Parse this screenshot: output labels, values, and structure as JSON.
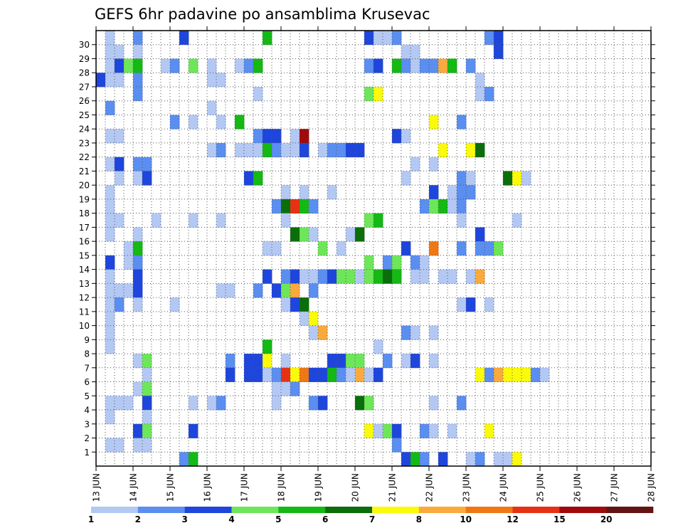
{
  "chart_data": {
    "type": "heatmap",
    "title": "GEFS 6hr padavine po ansamblima Krusevac",
    "xlabel": "",
    "ylabel": "",
    "x_tick_labels": [
      "13 JUN",
      "14 JUN",
      "15 JUN",
      "16 JUN",
      "17 JUN",
      "18 JUN",
      "19 JUN",
      "20 JUN",
      "21 JUN",
      "22 JUN",
      "23 JUN",
      "24 JUN",
      "25 JUN",
      "26 JUN",
      "27 JUN",
      "28 JUN"
    ],
    "y_tick_labels": [
      "1",
      "2",
      "3",
      "4",
      "5",
      "6",
      "7",
      "8",
      "9",
      "10",
      "11",
      "12",
      "13",
      "14",
      "15",
      "16",
      "17",
      "18",
      "19",
      "20",
      "21",
      "22",
      "23",
      "24",
      "25",
      "26",
      "27",
      "28",
      "29",
      "30"
    ],
    "xlim": [
      "13 JUN 00Z",
      "28 JUN 00Z"
    ],
    "time_step_hours": 6,
    "ylim": [
      0,
      30
    ],
    "grid": true,
    "legend_position": "bottom",
    "legend_thresholds": [
      "1",
      "2",
      "3",
      "4",
      "5",
      "6",
      "7",
      "8",
      "10",
      "12",
      "15",
      "20"
    ],
    "colors": [
      "#b4c8f4",
      "#5a8ef0",
      "#1e46dc",
      "#6ee65a",
      "#14b914",
      "#0a6e0a",
      "#fafa0a",
      "#faaa3c",
      "#f07814",
      "#e63214",
      "#a00a0a",
      "#641414"
    ],
    "cells": [
      [
        30,
        1,
        0
      ],
      [
        30,
        4,
        1
      ],
      [
        30,
        9,
        2
      ],
      [
        30,
        18,
        4
      ],
      [
        30,
        29,
        2
      ],
      [
        30,
        30,
        0
      ],
      [
        30,
        31,
        0
      ],
      [
        30,
        32,
        1
      ],
      [
        30,
        42,
        1
      ],
      [
        30,
        43,
        2
      ],
      [
        29,
        1,
        0
      ],
      [
        29,
        2,
        0
      ],
      [
        29,
        4,
        0
      ],
      [
        29,
        33,
        0
      ],
      [
        29,
        34,
        0
      ],
      [
        29,
        43,
        2
      ],
      [
        28,
        1,
        0
      ],
      [
        28,
        2,
        2
      ],
      [
        28,
        3,
        3
      ],
      [
        28,
        4,
        4
      ],
      [
        28,
        7,
        0
      ],
      [
        28,
        8,
        1
      ],
      [
        28,
        10,
        3
      ],
      [
        28,
        12,
        0
      ],
      [
        28,
        15,
        0
      ],
      [
        28,
        16,
        1
      ],
      [
        28,
        17,
        4
      ],
      [
        28,
        29,
        1
      ],
      [
        28,
        30,
        2
      ],
      [
        28,
        32,
        4
      ],
      [
        28,
        33,
        1
      ],
      [
        28,
        34,
        0
      ],
      [
        28,
        35,
        1
      ],
      [
        28,
        36,
        1
      ],
      [
        28,
        37,
        7
      ],
      [
        28,
        38,
        4
      ],
      [
        28,
        40,
        1
      ],
      [
        27,
        0,
        2
      ],
      [
        27,
        1,
        0
      ],
      [
        27,
        2,
        0
      ],
      [
        27,
        4,
        1
      ],
      [
        27,
        12,
        0
      ],
      [
        27,
        13,
        0
      ],
      [
        27,
        41,
        0
      ],
      [
        26,
        4,
        1
      ],
      [
        26,
        17,
        0
      ],
      [
        26,
        29,
        3
      ],
      [
        26,
        30,
        6
      ],
      [
        26,
        41,
        0
      ],
      [
        26,
        42,
        1
      ],
      [
        25,
        1,
        1
      ],
      [
        25,
        12,
        0
      ],
      [
        24,
        8,
        1
      ],
      [
        24,
        10,
        0
      ],
      [
        24,
        13,
        0
      ],
      [
        24,
        15,
        4
      ],
      [
        24,
        36,
        6
      ],
      [
        24,
        39,
        1
      ],
      [
        23,
        1,
        0
      ],
      [
        23,
        2,
        0
      ],
      [
        23,
        17,
        1
      ],
      [
        23,
        18,
        2
      ],
      [
        23,
        19,
        2
      ],
      [
        23,
        21,
        0
      ],
      [
        23,
        22,
        10
      ],
      [
        23,
        32,
        2
      ],
      [
        23,
        33,
        0
      ],
      [
        22,
        12,
        0
      ],
      [
        22,
        13,
        1
      ],
      [
        22,
        15,
        0
      ],
      [
        22,
        16,
        0
      ],
      [
        22,
        17,
        0
      ],
      [
        22,
        18,
        4
      ],
      [
        22,
        19,
        1
      ],
      [
        22,
        20,
        0
      ],
      [
        22,
        21,
        0
      ],
      [
        22,
        22,
        2
      ],
      [
        22,
        24,
        0
      ],
      [
        22,
        25,
        1
      ],
      [
        22,
        26,
        1
      ],
      [
        22,
        27,
        2
      ],
      [
        22,
        28,
        2
      ],
      [
        22,
        37,
        6
      ],
      [
        22,
        40,
        6
      ],
      [
        22,
        41,
        5
      ],
      [
        21,
        1,
        0
      ],
      [
        21,
        2,
        2
      ],
      [
        21,
        4,
        1
      ],
      [
        21,
        5,
        1
      ],
      [
        21,
        34,
        0
      ],
      [
        21,
        36,
        0
      ],
      [
        20,
        2,
        0
      ],
      [
        20,
        4,
        0
      ],
      [
        20,
        5,
        2
      ],
      [
        20,
        16,
        2
      ],
      [
        20,
        17,
        4
      ],
      [
        20,
        33,
        0
      ],
      [
        20,
        39,
        1
      ],
      [
        20,
        40,
        0
      ],
      [
        20,
        44,
        5
      ],
      [
        20,
        45,
        6
      ],
      [
        20,
        46,
        0
      ],
      [
        19,
        1,
        0
      ],
      [
        19,
        20,
        0
      ],
      [
        19,
        22,
        0
      ],
      [
        19,
        25,
        0
      ],
      [
        19,
        36,
        2
      ],
      [
        19,
        38,
        0
      ],
      [
        19,
        39,
        1
      ],
      [
        19,
        40,
        1
      ],
      [
        18,
        1,
        0
      ],
      [
        18,
        19,
        1
      ],
      [
        18,
        20,
        5
      ],
      [
        18,
        21,
        9
      ],
      [
        18,
        22,
        4
      ],
      [
        18,
        23,
        1
      ],
      [
        18,
        35,
        1
      ],
      [
        18,
        36,
        3
      ],
      [
        18,
        37,
        4
      ],
      [
        18,
        38,
        0
      ],
      [
        18,
        39,
        1
      ],
      [
        17,
        1,
        0
      ],
      [
        17,
        2,
        0
      ],
      [
        17,
        6,
        0
      ],
      [
        17,
        10,
        0
      ],
      [
        17,
        13,
        0
      ],
      [
        17,
        20,
        0
      ],
      [
        17,
        29,
        3
      ],
      [
        17,
        30,
        4
      ],
      [
        17,
        39,
        0
      ],
      [
        17,
        45,
        0
      ],
      [
        16,
        1,
        0
      ],
      [
        16,
        4,
        0
      ],
      [
        16,
        21,
        5
      ],
      [
        16,
        22,
        3
      ],
      [
        16,
        23,
        0
      ],
      [
        16,
        27,
        0
      ],
      [
        16,
        28,
        5
      ],
      [
        16,
        41,
        2
      ],
      [
        15,
        3,
        0
      ],
      [
        15,
        4,
        4
      ],
      [
        15,
        18,
        0
      ],
      [
        15,
        19,
        0
      ],
      [
        15,
        24,
        3
      ],
      [
        15,
        26,
        0
      ],
      [
        15,
        33,
        2
      ],
      [
        15,
        36,
        8
      ],
      [
        15,
        39,
        1
      ],
      [
        15,
        41,
        1
      ],
      [
        15,
        42,
        1
      ],
      [
        15,
        43,
        3
      ],
      [
        14,
        1,
        2
      ],
      [
        14,
        3,
        0
      ],
      [
        14,
        4,
        1
      ],
      [
        14,
        29,
        3
      ],
      [
        14,
        31,
        1
      ],
      [
        14,
        32,
        3
      ],
      [
        14,
        34,
        1
      ],
      [
        14,
        35,
        0
      ],
      [
        13,
        1,
        0
      ],
      [
        13,
        4,
        2
      ],
      [
        13,
        18,
        2
      ],
      [
        13,
        20,
        1
      ],
      [
        13,
        21,
        2
      ],
      [
        13,
        22,
        0
      ],
      [
        13,
        23,
        0
      ],
      [
        13,
        24,
        1
      ],
      [
        13,
        25,
        2
      ],
      [
        13,
        26,
        3
      ],
      [
        13,
        27,
        3
      ],
      [
        13,
        28,
        0
      ],
      [
        13,
        29,
        3
      ],
      [
        13,
        30,
        4
      ],
      [
        13,
        31,
        5
      ],
      [
        13,
        32,
        4
      ],
      [
        13,
        34,
        0
      ],
      [
        13,
        35,
        0
      ],
      [
        13,
        37,
        0
      ],
      [
        13,
        38,
        0
      ],
      [
        13,
        40,
        0
      ],
      [
        13,
        41,
        7
      ],
      [
        12,
        1,
        0
      ],
      [
        12,
        2,
        0
      ],
      [
        12,
        3,
        0
      ],
      [
        12,
        4,
        2
      ],
      [
        12,
        13,
        0
      ],
      [
        12,
        14,
        0
      ],
      [
        12,
        17,
        1
      ],
      [
        12,
        19,
        2
      ],
      [
        12,
        20,
        3
      ],
      [
        12,
        21,
        7
      ],
      [
        12,
        23,
        1
      ],
      [
        11,
        1,
        0
      ],
      [
        11,
        2,
        1
      ],
      [
        11,
        4,
        0
      ],
      [
        11,
        8,
        0
      ],
      [
        11,
        20,
        0
      ],
      [
        11,
        21,
        2
      ],
      [
        11,
        22,
        5
      ],
      [
        11,
        39,
        0
      ],
      [
        11,
        40,
        2
      ],
      [
        11,
        42,
        0
      ],
      [
        10,
        1,
        0
      ],
      [
        10,
        22,
        0
      ],
      [
        10,
        23,
        6
      ],
      [
        9,
        1,
        0
      ],
      [
        9,
        23,
        0
      ],
      [
        9,
        24,
        7
      ],
      [
        9,
        33,
        1
      ],
      [
        9,
        34,
        0
      ],
      [
        9,
        36,
        0
      ],
      [
        8,
        1,
        0
      ],
      [
        8,
        18,
        4
      ],
      [
        8,
        30,
        0
      ],
      [
        7,
        4,
        0
      ],
      [
        7,
        5,
        3
      ],
      [
        7,
        14,
        1
      ],
      [
        7,
        16,
        2
      ],
      [
        7,
        17,
        2
      ],
      [
        7,
        18,
        6
      ],
      [
        7,
        20,
        0
      ],
      [
        7,
        25,
        2
      ],
      [
        7,
        26,
        2
      ],
      [
        7,
        27,
        3
      ],
      [
        7,
        28,
        3
      ],
      [
        7,
        31,
        1
      ],
      [
        7,
        33,
        0
      ],
      [
        7,
        34,
        2
      ],
      [
        7,
        36,
        0
      ],
      [
        6,
        5,
        0
      ],
      [
        6,
        14,
        2
      ],
      [
        6,
        16,
        2
      ],
      [
        6,
        17,
        2
      ],
      [
        6,
        18,
        0
      ],
      [
        6,
        19,
        1
      ],
      [
        6,
        20,
        9
      ],
      [
        6,
        21,
        6
      ],
      [
        6,
        22,
        8
      ],
      [
        6,
        23,
        2
      ],
      [
        6,
        24,
        2
      ],
      [
        6,
        25,
        4
      ],
      [
        6,
        26,
        1
      ],
      [
        6,
        27,
        0
      ],
      [
        6,
        28,
        7
      ],
      [
        6,
        29,
        0
      ],
      [
        6,
        30,
        2
      ],
      [
        6,
        41,
        6
      ],
      [
        6,
        42,
        1
      ],
      [
        6,
        43,
        7
      ],
      [
        6,
        44,
        6
      ],
      [
        6,
        45,
        6
      ],
      [
        6,
        46,
        6
      ],
      [
        6,
        47,
        1
      ],
      [
        6,
        48,
        0
      ],
      [
        5,
        4,
        0
      ],
      [
        5,
        5,
        3
      ],
      [
        5,
        19,
        0
      ],
      [
        5,
        20,
        0
      ],
      [
        5,
        21,
        1
      ],
      [
        4,
        1,
        0
      ],
      [
        4,
        2,
        0
      ],
      [
        4,
        3,
        0
      ],
      [
        4,
        5,
        2
      ],
      [
        4,
        10,
        0
      ],
      [
        4,
        12,
        0
      ],
      [
        4,
        13,
        1
      ],
      [
        4,
        19,
        0
      ],
      [
        4,
        23,
        1
      ],
      [
        4,
        24,
        2
      ],
      [
        4,
        28,
        5
      ],
      [
        4,
        29,
        3
      ],
      [
        4,
        36,
        0
      ],
      [
        4,
        39,
        1
      ],
      [
        3,
        1,
        0
      ],
      [
        3,
        5,
        0
      ],
      [
        2,
        4,
        2
      ],
      [
        2,
        5,
        3
      ],
      [
        2,
        10,
        2
      ],
      [
        2,
        29,
        6
      ],
      [
        2,
        30,
        0
      ],
      [
        2,
        31,
        3
      ],
      [
        2,
        32,
        2
      ],
      [
        2,
        35,
        1
      ],
      [
        2,
        36,
        0
      ],
      [
        2,
        38,
        0
      ],
      [
        2,
        42,
        6
      ],
      [
        1,
        1,
        0
      ],
      [
        1,
        2,
        0
      ],
      [
        1,
        4,
        0
      ],
      [
        1,
        5,
        0
      ],
      [
        1,
        32,
        1
      ],
      [
        0,
        9,
        1
      ],
      [
        0,
        10,
        4
      ],
      [
        0,
        33,
        2
      ],
      [
        0,
        34,
        4
      ],
      [
        0,
        35,
        1
      ],
      [
        0,
        37,
        2
      ],
      [
        0,
        40,
        0
      ],
      [
        0,
        41,
        1
      ],
      [
        0,
        43,
        0
      ],
      [
        0,
        44,
        0
      ],
      [
        0,
        45,
        6
      ]
    ]
  }
}
